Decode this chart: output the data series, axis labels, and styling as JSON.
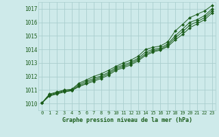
{
  "title": "Graphe pression niveau de la mer (hPa)",
  "bg_color": "#ceeaea",
  "grid_color": "#aacece",
  "line_color": "#1a5c1a",
  "marker_color": "#1a5c1a",
  "xlim": [
    -0.5,
    23.5
  ],
  "ylim": [
    1009.5,
    1017.5
  ],
  "yticks": [
    1010,
    1011,
    1012,
    1013,
    1014,
    1015,
    1016,
    1017
  ],
  "xticks": [
    0,
    1,
    2,
    3,
    4,
    5,
    6,
    7,
    8,
    9,
    10,
    11,
    12,
    13,
    14,
    15,
    16,
    17,
    18,
    19,
    20,
    21,
    22,
    23
  ],
  "series": [
    [
      1010.05,
      1010.7,
      1010.85,
      1011.0,
      1011.05,
      1011.5,
      1011.75,
      1012.0,
      1012.2,
      1012.45,
      1012.75,
      1013.0,
      1013.2,
      1013.5,
      1014.0,
      1014.15,
      1014.25,
      1014.55,
      1015.35,
      1015.85,
      1016.35,
      1016.6,
      1016.85,
      1017.25
    ],
    [
      1010.05,
      1010.65,
      1010.8,
      1010.95,
      1011.0,
      1011.4,
      1011.65,
      1011.85,
      1012.05,
      1012.3,
      1012.65,
      1012.85,
      1013.05,
      1013.35,
      1013.8,
      1014.0,
      1014.1,
      1014.4,
      1015.0,
      1015.5,
      1016.0,
      1016.2,
      1016.5,
      1017.0
    ],
    [
      1010.05,
      1010.6,
      1010.75,
      1010.9,
      1010.95,
      1011.3,
      1011.55,
      1011.75,
      1011.95,
      1012.2,
      1012.55,
      1012.75,
      1012.95,
      1013.25,
      1013.65,
      1013.9,
      1014.0,
      1014.3,
      1014.85,
      1015.3,
      1015.8,
      1016.05,
      1016.35,
      1016.85
    ],
    [
      1010.05,
      1010.55,
      1010.7,
      1010.85,
      1010.95,
      1011.25,
      1011.45,
      1011.65,
      1011.85,
      1012.1,
      1012.45,
      1012.65,
      1012.85,
      1013.15,
      1013.55,
      1013.8,
      1013.95,
      1014.2,
      1014.7,
      1015.1,
      1015.6,
      1015.9,
      1016.2,
      1016.7
    ]
  ]
}
